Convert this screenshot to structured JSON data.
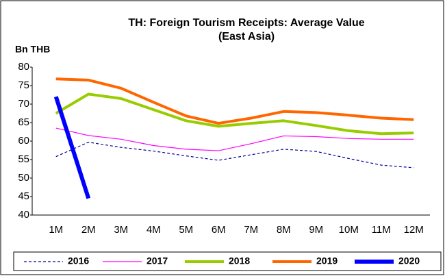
{
  "chart_data": {
    "type": "line",
    "title": "TH: Foreign Tourism Receipts: Average Value (East Asia)",
    "y_label": "Bn THB",
    "categories": [
      "1M",
      "2M",
      "3M",
      "4M",
      "5M",
      "6M",
      "7M",
      "8M",
      "9M",
      "10M",
      "11M",
      "12M"
    ],
    "ylim": [
      40,
      80
    ],
    "yticks": [
      40,
      45,
      50,
      55,
      60,
      65,
      70,
      75,
      80
    ],
    "grid": false,
    "legend": "bottom",
    "series": [
      {
        "name": "2016",
        "color": "#000099",
        "dashed": true,
        "width": 1.2,
        "values": [
          55.8,
          59.7,
          58.3,
          57.3,
          56,
          54.8,
          56.3,
          57.8,
          57.2,
          55.3,
          53.5,
          52.8
        ]
      },
      {
        "name": "2017",
        "color": "#ff00ff",
        "width": 1.2,
        "values": [
          63.5,
          61.5,
          60.5,
          58.8,
          57.8,
          57.4,
          59.3,
          61.4,
          61.2,
          60.7,
          60.5,
          60.5
        ]
      },
      {
        "name": "2018",
        "color": "#99cc00",
        "width": 4,
        "values": [
          67.5,
          72.7,
          71.5,
          68.5,
          65.5,
          64,
          64.8,
          65.5,
          64.2,
          62.8,
          62,
          62.2
        ]
      },
      {
        "name": "2019",
        "color": "#ff6600",
        "width": 4,
        "values": [
          76.8,
          76.5,
          74.3,
          70.5,
          66.8,
          64.8,
          66.2,
          68,
          67.7,
          67,
          66.2,
          65.8
        ]
      },
      {
        "name": "2020",
        "color": "#0000ff",
        "width": 6,
        "values": [
          72,
          44.5,
          null,
          null,
          null,
          null,
          null,
          null,
          null,
          null,
          null,
          null
        ]
      }
    ]
  }
}
